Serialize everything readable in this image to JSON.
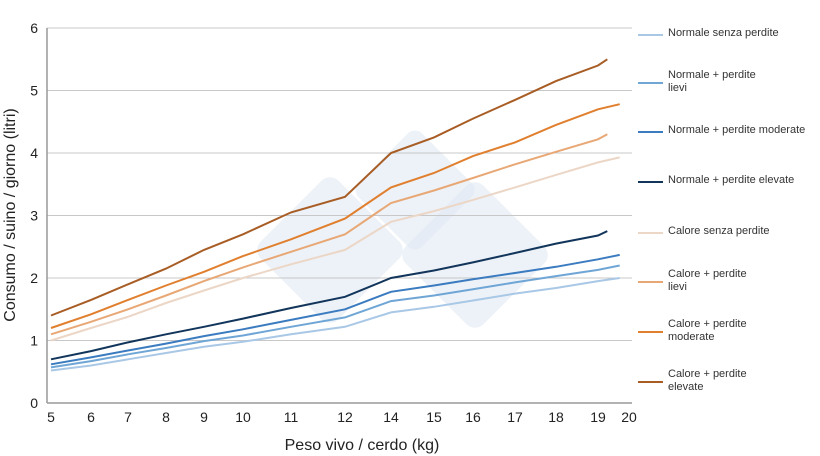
{
  "chart_data": {
    "type": "line",
    "xlabel": "Peso vivo / cerdo (kg)",
    "ylabel": "Consumo / suino / giorno (litri)",
    "x_tick_labels": [
      "5",
      "6",
      "7",
      "8",
      "9",
      "10",
      "11",
      "12",
      "14",
      "15",
      "16",
      "17",
      "18",
      "19",
      "20"
    ],
    "y_tick_labels": [
      "0",
      "1",
      "2",
      "3",
      "4",
      "5",
      "6"
    ],
    "ylim": [
      0,
      6
    ],
    "grid": "horizontal",
    "legend_position": "right",
    "series": [
      {
        "name": "Normale senza perdite",
        "color": "#a9c8e6",
        "points": [
          [
            5,
            0.52
          ],
          [
            6,
            0.6
          ],
          [
            7,
            0.7
          ],
          [
            8,
            0.8
          ],
          [
            9,
            0.9
          ],
          [
            10,
            0.98
          ],
          [
            11,
            1.1
          ],
          [
            12,
            1.22
          ],
          [
            14,
            1.45
          ],
          [
            15,
            1.54
          ],
          [
            16,
            1.64
          ],
          [
            17,
            1.75
          ],
          [
            18,
            1.84
          ],
          [
            19,
            1.95
          ],
          [
            19.7,
            2.0
          ]
        ]
      },
      {
        "name": "Normale + perdite lievi",
        "color": "#6fa6d6",
        "points": [
          [
            5,
            0.57
          ],
          [
            6,
            0.67
          ],
          [
            7,
            0.78
          ],
          [
            8,
            0.88
          ],
          [
            9,
            0.99
          ],
          [
            10,
            1.08
          ],
          [
            11,
            1.22
          ],
          [
            12,
            1.37
          ],
          [
            14,
            1.63
          ],
          [
            15,
            1.72
          ],
          [
            16,
            1.82
          ],
          [
            17,
            1.93
          ],
          [
            18,
            2.03
          ],
          [
            19,
            2.13
          ],
          [
            19.7,
            2.2
          ]
        ]
      },
      {
        "name": "Normale + perdite moderate",
        "color": "#3b7bbf",
        "points": [
          [
            5,
            0.62
          ],
          [
            6,
            0.73
          ],
          [
            7,
            0.84
          ],
          [
            8,
            0.95
          ],
          [
            9,
            1.07
          ],
          [
            10,
            1.18
          ],
          [
            11,
            1.33
          ],
          [
            12,
            1.5
          ],
          [
            14,
            1.78
          ],
          [
            15,
            1.88
          ],
          [
            16,
            1.98
          ],
          [
            17,
            2.08
          ],
          [
            18,
            2.18
          ],
          [
            19,
            2.3
          ],
          [
            19.7,
            2.37
          ]
        ]
      },
      {
        "name": "Normale + perdite elevate",
        "color": "#12355b",
        "points": [
          [
            5,
            0.7
          ],
          [
            6,
            0.83
          ],
          [
            7,
            0.97
          ],
          [
            8,
            1.1
          ],
          [
            9,
            1.22
          ],
          [
            10,
            1.35
          ],
          [
            11,
            1.52
          ],
          [
            12,
            1.7
          ],
          [
            14,
            2.0
          ],
          [
            15,
            2.12
          ],
          [
            16,
            2.25
          ],
          [
            17,
            2.4
          ],
          [
            18,
            2.55
          ],
          [
            19,
            2.68
          ],
          [
            19.3,
            2.75
          ]
        ]
      },
      {
        "name": "Calore senza perdite",
        "color": "#ecd6c6",
        "points": [
          [
            5,
            1.0
          ],
          [
            6,
            1.2
          ],
          [
            7,
            1.38
          ],
          [
            8,
            1.6
          ],
          [
            9,
            1.8
          ],
          [
            10,
            2.0
          ],
          [
            11,
            2.22
          ],
          [
            12,
            2.45
          ],
          [
            14,
            2.9
          ],
          [
            15,
            3.07
          ],
          [
            16,
            3.25
          ],
          [
            17,
            3.45
          ],
          [
            18,
            3.65
          ],
          [
            19,
            3.85
          ],
          [
            19.7,
            3.93
          ]
        ]
      },
      {
        "name": "Calore + perdite lievi",
        "color": "#e8a876",
        "points": [
          [
            5,
            1.1
          ],
          [
            6,
            1.3
          ],
          [
            7,
            1.5
          ],
          [
            8,
            1.72
          ],
          [
            9,
            1.95
          ],
          [
            10,
            2.17
          ],
          [
            11,
            2.42
          ],
          [
            12,
            2.7
          ],
          [
            14,
            3.2
          ],
          [
            15,
            3.4
          ],
          [
            16,
            3.6
          ],
          [
            17,
            3.82
          ],
          [
            18,
            4.02
          ],
          [
            19,
            4.22
          ],
          [
            19.3,
            4.3
          ]
        ]
      },
      {
        "name": "Calore + perdite moderate",
        "color": "#e07f2e",
        "points": [
          [
            5,
            1.2
          ],
          [
            6,
            1.42
          ],
          [
            7,
            1.65
          ],
          [
            8,
            1.88
          ],
          [
            9,
            2.1
          ],
          [
            10,
            2.35
          ],
          [
            11,
            2.62
          ],
          [
            12,
            2.95
          ],
          [
            14,
            3.45
          ],
          [
            15,
            3.68
          ],
          [
            16,
            3.95
          ],
          [
            17,
            4.17
          ],
          [
            18,
            4.45
          ],
          [
            19,
            4.7
          ],
          [
            19.7,
            4.78
          ]
        ]
      },
      {
        "name": "Calore + perdite elevate",
        "color": "#a85d25",
        "points": [
          [
            5,
            1.4
          ],
          [
            6,
            1.65
          ],
          [
            7,
            1.9
          ],
          [
            8,
            2.15
          ],
          [
            9,
            2.45
          ],
          [
            10,
            2.7
          ],
          [
            11,
            3.05
          ],
          [
            12,
            3.3
          ],
          [
            14,
            4.0
          ],
          [
            15,
            4.25
          ],
          [
            16,
            4.55
          ],
          [
            17,
            4.85
          ],
          [
            18,
            5.15
          ],
          [
            19,
            5.4
          ],
          [
            19.3,
            5.5
          ]
        ]
      }
    ]
  },
  "legend": {
    "items": [
      {
        "line1": "Normale senza perdite",
        "line2": ""
      },
      {
        "line1": "Normale + perdite",
        "line2": "lievi"
      },
      {
        "line1": "Normale + perdite moderate",
        "line2": ""
      },
      {
        "line1": "Normale + perdite elevate",
        "line2": ""
      },
      {
        "line1": "Calore senza perdite",
        "line2": ""
      },
      {
        "line1": "Calore + perdite",
        "line2": "lievi"
      },
      {
        "line1": "Calore + perdite",
        "line2": "moderate"
      },
      {
        "line1": "Calore + perdite",
        "line2": "elevate"
      }
    ]
  }
}
